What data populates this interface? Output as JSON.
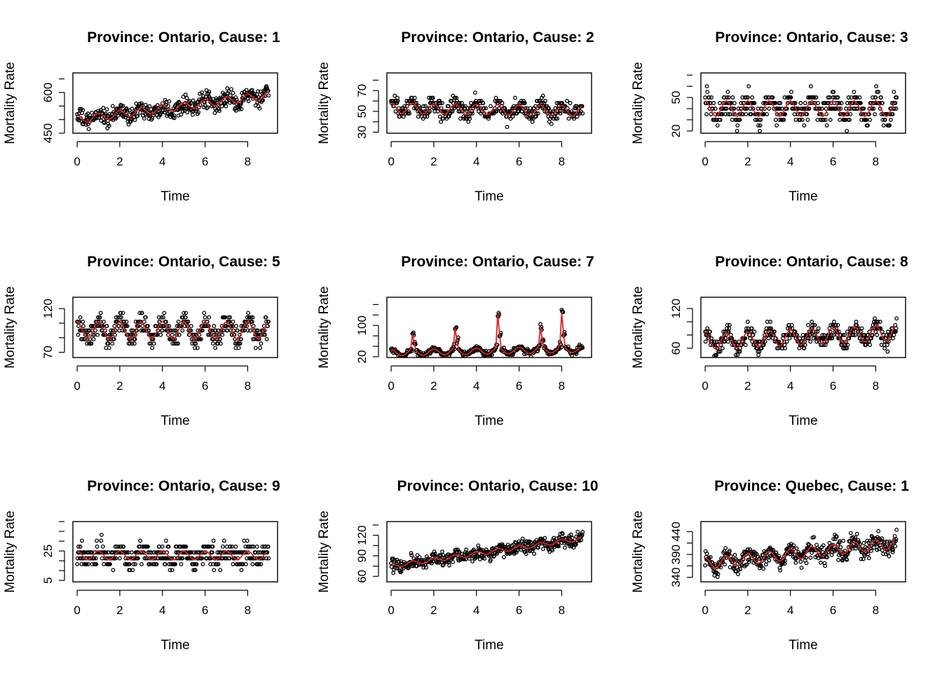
{
  "chart_data": [
    {
      "type": "scatter",
      "title": "Province: Ontario, Cause: 1",
      "xlabel": "Time",
      "ylabel": "Mortality Rate",
      "xlim": [
        -0.2,
        9.4
      ],
      "ylim": [
        450,
        672
      ],
      "xticks": [
        0,
        2,
        4,
        6,
        8
      ],
      "yticks": [
        450,
        600
      ],
      "pattern": {
        "base": 500,
        "trend": 10,
        "amp": 14,
        "noise": 26,
        "spike_amp": 0,
        "decimals": 0,
        "step": 0,
        "min": 455,
        "max": 665
      },
      "series": [
        {
          "name": "",
          "values": [],
          "points_color": "#000000"
        },
        {
          "name": "",
          "values": [],
          "line_color": "#dd2222"
        }
      ]
    },
    {
      "type": "scatter",
      "title": "Province: Ontario, Cause: 2",
      "xlabel": "Time",
      "ylabel": "Mortality Rate",
      "xlim": [
        -0.2,
        9.4
      ],
      "ylim": [
        29,
        87
      ],
      "xticks": [
        0,
        2,
        4,
        6,
        8
      ],
      "yticks": [
        30,
        50,
        70
      ],
      "pattern": {
        "base": 53,
        "trend": -0.3,
        "amp": 5,
        "noise": 7,
        "spike_amp": 0,
        "decimals": 0,
        "step": 2.5,
        "min": 30,
        "max": 85
      },
      "series": [
        {
          "name": "",
          "values": [],
          "points_color": "#000000"
        },
        {
          "name": "",
          "values": [],
          "line_color": "#dd2222"
        }
      ]
    },
    {
      "type": "scatter",
      "title": "Province: Ontario, Cause: 3",
      "xlabel": "Time",
      "ylabel": "Mortality Rate",
      "xlim": [
        -0.2,
        9.4
      ],
      "ylim": [
        18,
        72
      ],
      "xticks": [
        0,
        2,
        4,
        6,
        8
      ],
      "yticks": [
        20,
        50
      ],
      "pattern": {
        "base": 40,
        "trend": 0,
        "amp": 7,
        "noise": 9,
        "spike_amp": 0,
        "decimals": 0,
        "step": 5,
        "min": 20,
        "max": 70
      },
      "series": [
        {
          "name": "",
          "values": [],
          "points_color": "#000000"
        },
        {
          "name": "",
          "values": [],
          "line_color": "#dd2222"
        }
      ]
    },
    {
      "type": "scatter",
      "title": "Province: Ontario, Cause: 5",
      "xlabel": "Time",
      "ylabel": "Mortality Rate",
      "xlim": [
        -0.2,
        9.4
      ],
      "ylim": [
        64,
        133
      ],
      "xticks": [
        0,
        2,
        4,
        6,
        8
      ],
      "yticks": [
        70,
        120
      ],
      "pattern": {
        "base": 95,
        "trend": 0,
        "amp": 10,
        "noise": 10,
        "spike_amp": 0,
        "decimals": 0,
        "step": 5,
        "min": 65,
        "max": 130
      },
      "series": [
        {
          "name": "",
          "values": [],
          "points_color": "#000000"
        },
        {
          "name": "",
          "values": [],
          "line_color": "#dd2222"
        }
      ]
    },
    {
      "type": "scatter",
      "title": "Province: Ontario, Cause: 7",
      "xlabel": "Time",
      "ylabel": "Mortality Rate",
      "xlim": [
        -0.2,
        9.4
      ],
      "ylim": [
        18,
        172
      ],
      "xticks": [
        0,
        2,
        4,
        6,
        8
      ],
      "yticks": [
        20,
        100
      ],
      "pattern": {
        "base": 30,
        "trend": 1,
        "amp": 8,
        "noise": 6,
        "spike_amp": 95,
        "decimals": 0,
        "step": 0,
        "min": 20,
        "max": 168
      },
      "series": [
        {
          "name": "",
          "values": [],
          "points_color": "#000000"
        },
        {
          "name": "",
          "values": [],
          "line_color": "#dd2222"
        }
      ]
    },
    {
      "type": "scatter",
      "title": "Province: Ontario, Cause: 8",
      "xlabel": "Time",
      "ylabel": "Mortality Rate",
      "xlim": [
        -0.2,
        9.4
      ],
      "ylim": [
        46,
        137
      ],
      "xticks": [
        0,
        2,
        4,
        6,
        8
      ],
      "yticks": [
        60,
        120
      ],
      "pattern": {
        "base": 70,
        "trend": 1.5,
        "amp": 12,
        "noise": 10,
        "spike_amp": 0,
        "decimals": 0,
        "step": 5,
        "min": 48,
        "max": 135
      },
      "series": [
        {
          "name": "",
          "values": [],
          "points_color": "#000000"
        },
        {
          "name": "",
          "values": [],
          "line_color": "#dd2222"
        }
      ]
    },
    {
      "type": "scatter",
      "title": "Province: Ontario, Cause: 9",
      "xlabel": "Time",
      "ylabel": "Mortality Rate",
      "xlim": [
        -0.2,
        9.4
      ],
      "ylim": [
        4,
        45
      ],
      "xticks": [
        0,
        2,
        4,
        6,
        8
      ],
      "yticks": [
        5,
        25
      ],
      "pattern": {
        "base": 22,
        "trend": 0,
        "amp": 3,
        "noise": 6,
        "spike_amp": 0,
        "decimals": 0,
        "step": 4,
        "min": 5,
        "max": 43
      },
      "series": [
        {
          "name": "",
          "values": [],
          "points_color": "#000000"
        },
        {
          "name": "",
          "values": [],
          "line_color": "#dd2222"
        }
      ]
    },
    {
      "type": "scatter",
      "title": "Province: Ontario, Cause: 10",
      "xlabel": "Time",
      "ylabel": "Mortality Rate",
      "xlim": [
        -0.2,
        9.4
      ],
      "ylim": [
        52,
        140
      ],
      "xticks": [
        0,
        2,
        4,
        6,
        8
      ],
      "yticks": [
        60,
        90,
        120
      ],
      "pattern": {
        "base": 75,
        "trend": 4.5,
        "amp": 3,
        "noise": 8,
        "spike_amp": 0,
        "decimals": 0,
        "step": 0,
        "min": 55,
        "max": 138
      },
      "series": [
        {
          "name": "",
          "values": [],
          "points_color": "#000000"
        },
        {
          "name": "",
          "values": [],
          "line_color": "#dd2222"
        }
      ]
    },
    {
      "type": "scatter",
      "title": "Province: Quebec, Cause: 1",
      "xlabel": "Time",
      "ylabel": "Mortality Rate",
      "xlim": [
        -0.2,
        9.4
      ],
      "ylim": [
        330,
        462
      ],
      "xticks": [
        0,
        2,
        4,
        6,
        8
      ],
      "yticks": [
        340,
        390,
        440
      ],
      "pattern": {
        "base": 370,
        "trend": 5,
        "amp": 12,
        "noise": 18,
        "spike_amp": 0,
        "decimals": 0,
        "step": 0,
        "min": 332,
        "max": 460
      },
      "series": [
        {
          "name": "",
          "values": [],
          "points_color": "#000000"
        },
        {
          "name": "",
          "values": [],
          "line_color": "#dd2222"
        }
      ]
    }
  ]
}
